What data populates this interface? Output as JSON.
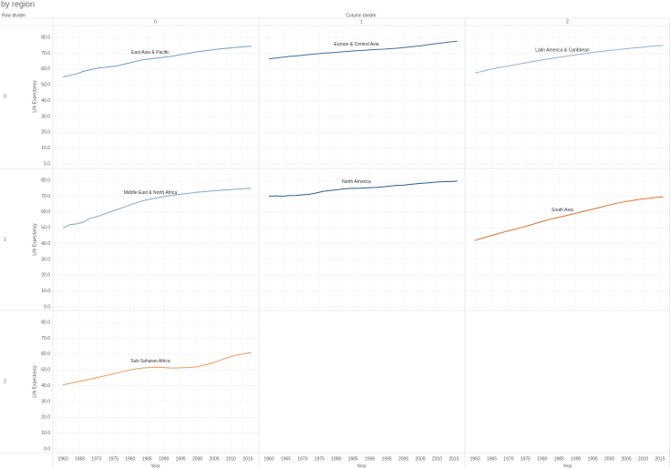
{
  "chart_data": {
    "type": "line",
    "title": "by region",
    "row_label": "Row divider",
    "column_label": "Column divider",
    "columns": [
      "0",
      "1",
      "2"
    ],
    "rows": [
      "0",
      "1",
      "2"
    ],
    "x_label": "Year",
    "y_label": "Life Expectancy",
    "xlim": [
      1957,
      2018
    ],
    "xticks": [
      1960,
      1965,
      1970,
      1975,
      1980,
      1985,
      1990,
      1995,
      2000,
      2005,
      2010,
      2015
    ],
    "ylim": [
      0,
      87
    ],
    "yticks": [
      {
        "value": 0,
        "label": "0.0"
      },
      {
        "value": 10,
        "label": "10.0"
      },
      {
        "value": 20,
        "label": "20.0"
      },
      {
        "value": 30,
        "label": "30.0"
      },
      {
        "value": 40,
        "label": "40.0"
      },
      {
        "value": 50,
        "label": "50.0"
      },
      {
        "value": 60,
        "label": "60.0"
      },
      {
        "value": 70,
        "label": "70.0"
      },
      {
        "value": 80,
        "label": "80.0"
      }
    ],
    "grid": true,
    "x": [
      1960,
      1962,
      1964,
      1966,
      1968,
      1970,
      1972,
      1974,
      1976,
      1978,
      1980,
      1982,
      1984,
      1986,
      1988,
      1990,
      1992,
      1994,
      1996,
      1998,
      2000,
      2002,
      2004,
      2006,
      2008,
      2010,
      2012,
      2014,
      2016
    ],
    "series": [
      {
        "name": "East Asia & Pacific",
        "row": 0,
        "column": 0,
        "color": "#6f9fcb",
        "values": [
          55,
          56,
          57,
          58.5,
          59.5,
          60.5,
          61,
          61.5,
          62,
          63,
          64,
          65,
          66,
          66.5,
          67,
          67.5,
          68,
          68.8,
          69.5,
          70.2,
          71,
          71.5,
          72,
          72.6,
          73,
          73.4,
          73.8,
          74.2,
          74.5
        ]
      },
      {
        "name": "Europe & Central Asia",
        "row": 0,
        "column": 1,
        "color": "#3f6fa0",
        "values": [
          66.5,
          67,
          67.5,
          68,
          68.3,
          68.8,
          69.2,
          69.6,
          70,
          70.3,
          70.6,
          71,
          71.3,
          71.6,
          71.8,
          72.2,
          72.4,
          72.6,
          72.9,
          73.2,
          73.6,
          74,
          74.5,
          75,
          75.6,
          76.2,
          76.7,
          77.2,
          77.6
        ]
      },
      {
        "name": "Latin America & Caribbean",
        "row": 0,
        "column": 2,
        "color": "#8db2d4",
        "values": [
          57.5,
          58.5,
          59.5,
          60.5,
          61.3,
          62,
          62.8,
          63.5,
          64.3,
          65,
          65.8,
          66.5,
          67.2,
          67.8,
          68.4,
          69,
          69.6,
          70.2,
          70.8,
          71.3,
          71.8,
          72.2,
          72.7,
          73.1,
          73.5,
          73.9,
          74.3,
          74.7,
          75
        ]
      },
      {
        "name": "Middle East & North Africa",
        "row": 1,
        "column": 0,
        "color": "#7fa9cf",
        "values": [
          50,
          52,
          52.5,
          53.5,
          56,
          57,
          58.5,
          60,
          61.5,
          63,
          64.5,
          66,
          67.2,
          68.2,
          69,
          69.8,
          70.5,
          71,
          71.5,
          72,
          72.5,
          72.9,
          73.3,
          73.6,
          73.9,
          74.2,
          74.5,
          74.8,
          75
        ]
      },
      {
        "name": "North America",
        "row": 1,
        "column": 1,
        "color": "#2d5f8f",
        "values": [
          70,
          70.2,
          70,
          70.4,
          70.5,
          70.9,
          71.2,
          72,
          73,
          73.6,
          74,
          74.6,
          75,
          75,
          75.2,
          75.4,
          75.6,
          76,
          76.4,
          76.9,
          77,
          77.5,
          77.9,
          78.3,
          78.6,
          79,
          79.2,
          79.3,
          79.5
        ]
      },
      {
        "name": "South Asia",
        "row": 1,
        "column": 2,
        "color": "#e0702f",
        "values": [
          42,
          43.3,
          44.6,
          45.8,
          47,
          48.1,
          49.2,
          50.3,
          51.5,
          52.8,
          54,
          55.2,
          56.2,
          57.2,
          58.2,
          59.2,
          60.3,
          61.3,
          62.3,
          63.4,
          64.5,
          65.5,
          66.3,
          67,
          67.7,
          68.3,
          68.8,
          69.3,
          69.6
        ]
      },
      {
        "name": "Sub-Saharan Africa",
        "row": 2,
        "column": 0,
        "color": "#ef9a55",
        "values": [
          40.5,
          41.5,
          42.3,
          43.2,
          44,
          45,
          46,
          47,
          48,
          49,
          50,
          50.8,
          51.3,
          51.5,
          51.7,
          51.5,
          51.2,
          51.2,
          51.4,
          51.6,
          52,
          53,
          54,
          55.5,
          57,
          58.5,
          59.5,
          60.3,
          61
        ]
      }
    ]
  }
}
